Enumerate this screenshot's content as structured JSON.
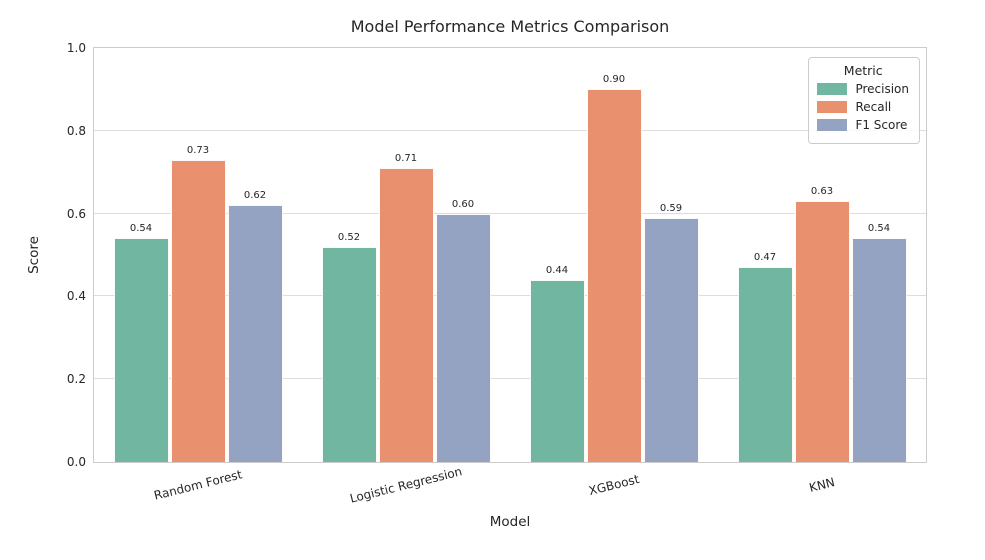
{
  "figure": {
    "title": "Model Performance Metrics Comparison",
    "xlabel": "Model",
    "ylabel": "Score"
  },
  "legend": {
    "title": "Metric",
    "entries": [
      {
        "label": "Precision",
        "color": "#71b6a1"
      },
      {
        "label": "Recall",
        "color": "#e9916f"
      },
      {
        "label": "F1 Score",
        "color": "#95a3c3"
      }
    ]
  },
  "chart_data": {
    "type": "bar",
    "title": "Model Performance Metrics Comparison",
    "xlabel": "Model",
    "ylabel": "Score",
    "categories": [
      "Random Forest",
      "Logistic Regression",
      "XGBoost",
      "KNN"
    ],
    "series": [
      {
        "name": "Precision",
        "color": "#71b6a1",
        "values": [
          0.54,
          0.52,
          0.44,
          0.47
        ]
      },
      {
        "name": "Recall",
        "color": "#e9916f",
        "values": [
          0.73,
          0.71,
          0.9,
          0.63
        ]
      },
      {
        "name": "F1 Score",
        "color": "#95a3c3",
        "values": [
          0.62,
          0.6,
          0.59,
          0.54
        ]
      }
    ],
    "value_label_format": "0.00",
    "yticks": [
      0.0,
      0.2,
      0.4,
      0.6,
      0.8,
      1.0
    ],
    "ylim": [
      0.0,
      1.0
    ],
    "grid": true,
    "legend_title": "Metric",
    "legend_position": "upper right"
  }
}
